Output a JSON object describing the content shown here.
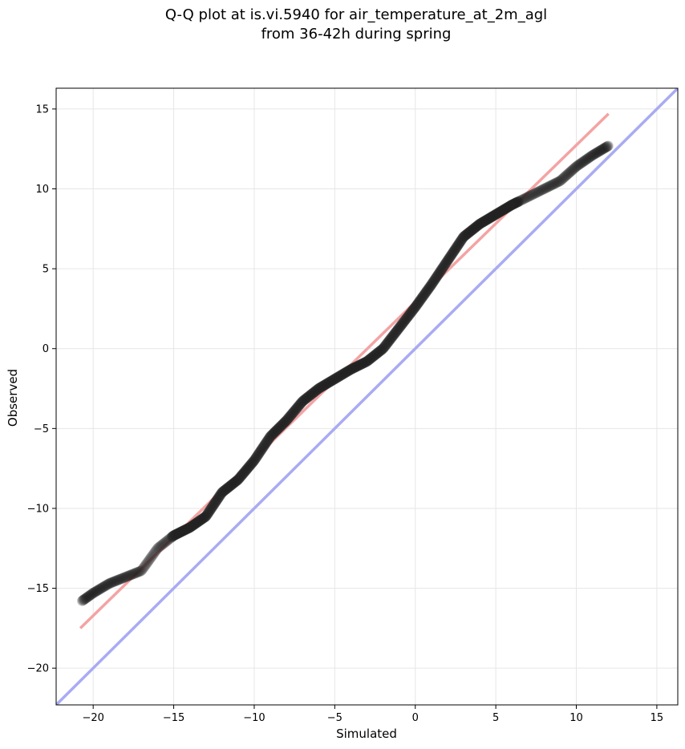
{
  "chart_data": {
    "type": "scatter",
    "title_lines": [
      "Q-Q plot at is.vi.5940 for air_temperature_at_2m_agl",
      "from 36-42h during spring"
    ],
    "xlabel": "Simulated",
    "ylabel": "Observed",
    "xlim": [
      -22.3,
      16.3
    ],
    "ylim": [
      -22.3,
      16.3
    ],
    "xticks": [
      -20,
      -15,
      -10,
      -5,
      0,
      5,
      10,
      15
    ],
    "yticks": [
      -20,
      -15,
      -10,
      -5,
      0,
      5,
      10,
      15
    ],
    "xtick_labels": [
      "−20",
      "−15",
      "−10",
      "−5",
      "0",
      "5",
      "10",
      "15"
    ],
    "ytick_labels": [
      "−20",
      "−15",
      "−10",
      "−5",
      "0",
      "5",
      "10",
      "15"
    ],
    "grid": true,
    "colors": {
      "points": "#222222",
      "fit_line": "#f4a3a3",
      "identity_line": "#a9abf3",
      "grid": "#e6e6e6"
    },
    "quantile_curve": {
      "simulated": [
        -20.7,
        -20.0,
        -19.0,
        -18.0,
        -17.0,
        -16.0,
        -15.0,
        -14.0,
        -13.0,
        -12.0,
        -11.0,
        -10.0,
        -9.0,
        -8.0,
        -7.0,
        -6.0,
        -5.0,
        -4.0,
        -3.0,
        -2.0,
        -1.0,
        0.0,
        1.0,
        2.0,
        3.0,
        4.0,
        5.0,
        6.0,
        7.0,
        8.0,
        9.0,
        10.0,
        11.0,
        12.0
      ],
      "observed": [
        -15.8,
        -15.3,
        -14.7,
        -14.3,
        -13.9,
        -12.5,
        -11.7,
        -11.2,
        -10.5,
        -9.0,
        -8.2,
        -7.0,
        -5.5,
        -4.5,
        -3.3,
        -2.5,
        -1.9,
        -1.3,
        -0.8,
        0.0,
        1.3,
        2.6,
        4.0,
        5.5,
        7.0,
        7.8,
        8.4,
        9.0,
        9.5,
        10.0,
        10.5,
        11.4,
        12.1,
        12.7
      ]
    },
    "fit_line": {
      "x": [
        -20.8,
        12.0
      ],
      "y": [
        -17.5,
        14.7
      ]
    },
    "identity_line": {
      "x": [
        -22.3,
        16.3
      ],
      "y": [
        -22.3,
        16.3
      ]
    }
  }
}
